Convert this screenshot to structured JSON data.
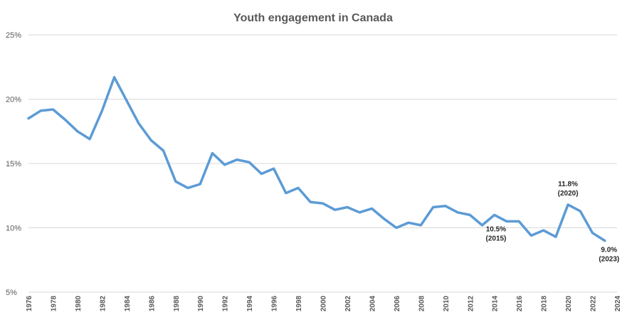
{
  "chart_data": {
    "type": "line",
    "title": "Youth engagement in Canada",
    "xlabel": "",
    "ylabel": "",
    "ylim": [
      5,
      25
    ],
    "xlim": [
      1976,
      2024
    ],
    "grid": true,
    "legend": "none",
    "line_color": "#5b9bd5",
    "y_ticks": [
      {
        "value": 5,
        "label": "5%"
      },
      {
        "value": 10,
        "label": "10%"
      },
      {
        "value": 15,
        "label": "15%"
      },
      {
        "value": 20,
        "label": "20%"
      },
      {
        "value": 25,
        "label": "25%"
      }
    ],
    "x_ticks": [
      "1976",
      "1978",
      "1980",
      "1982",
      "1984",
      "1986",
      "1988",
      "1990",
      "1992",
      "1994",
      "1996",
      "1998",
      "2000",
      "2002",
      "2004",
      "2006",
      "2008",
      "2010",
      "2012",
      "2014",
      "2016",
      "2018",
      "2020",
      "2022",
      "2024"
    ],
    "series": [
      {
        "name": "Youth engagement",
        "x": [
          1976,
          1977,
          1978,
          1979,
          1980,
          1981,
          1982,
          1983,
          1984,
          1985,
          1986,
          1987,
          1988,
          1989,
          1990,
          1991,
          1992,
          1993,
          1994,
          1995,
          1996,
          1997,
          1998,
          1999,
          2000,
          2001,
          2002,
          2003,
          2004,
          2005,
          2006,
          2007,
          2008,
          2009,
          2010,
          2011,
          2012,
          2013,
          2014,
          2015,
          2016,
          2017,
          2018,
          2019,
          2020,
          2021,
          2022,
          2023
        ],
        "values": [
          18.5,
          19.1,
          19.2,
          18.4,
          17.5,
          16.9,
          19.1,
          21.7,
          19.9,
          18.1,
          16.8,
          16.0,
          13.6,
          13.1,
          13.4,
          15.8,
          14.9,
          15.3,
          15.1,
          14.2,
          14.6,
          12.7,
          13.1,
          12.0,
          11.9,
          11.4,
          11.6,
          11.2,
          11.5,
          10.7,
          10.0,
          10.4,
          10.2,
          11.6,
          11.7,
          11.2,
          11.0,
          10.2,
          11.0,
          10.5,
          10.5,
          9.4,
          9.8,
          9.3,
          11.8,
          11.3,
          9.6,
          9.0
        ]
      }
    ],
    "annotations": [
      {
        "x": 2015,
        "y": 10.5,
        "line1": "10.5%",
        "line2": "(2015)",
        "placement": "below-left"
      },
      {
        "x": 2020,
        "y": 11.8,
        "line1": "11.8%",
        "line2": "(2020)",
        "placement": "above"
      },
      {
        "x": 2023,
        "y": 9.0,
        "line1": "9.0%",
        "line2": "(2023)",
        "placement": "below"
      }
    ]
  }
}
